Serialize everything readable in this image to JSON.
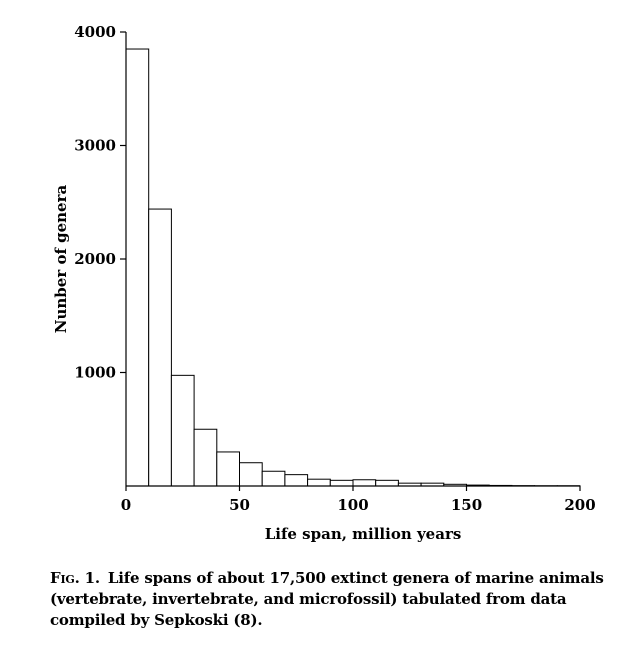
{
  "chart_data": {
    "type": "bar",
    "xlabel": "Life span, million years",
    "ylabel": "Nunber of genera",
    "xlim": [
      0,
      200
    ],
    "ylim": [
      0,
      4000
    ],
    "xticks": [
      0,
      50,
      100,
      150,
      200
    ],
    "yticks": [
      1000,
      2000,
      3000,
      4000
    ],
    "grid": false,
    "bin_width": 10,
    "x": [
      0,
      10,
      20,
      30,
      40,
      50,
      60,
      70,
      80,
      90,
      100,
      110,
      120,
      130,
      140,
      150,
      160,
      170,
      180,
      190
    ],
    "values": [
      3850,
      2440,
      975,
      500,
      300,
      205,
      130,
      100,
      60,
      50,
      55,
      50,
      25,
      25,
      15,
      8,
      5,
      3,
      2,
      2
    ]
  },
  "caption": {
    "label": "Fig. 1.",
    "text": "Life spans of about 17,500 extinct genera of marine animals (vertebrate, invertebrate, and microfossil) tabulated from data compiled by Sepkoski (8)."
  }
}
